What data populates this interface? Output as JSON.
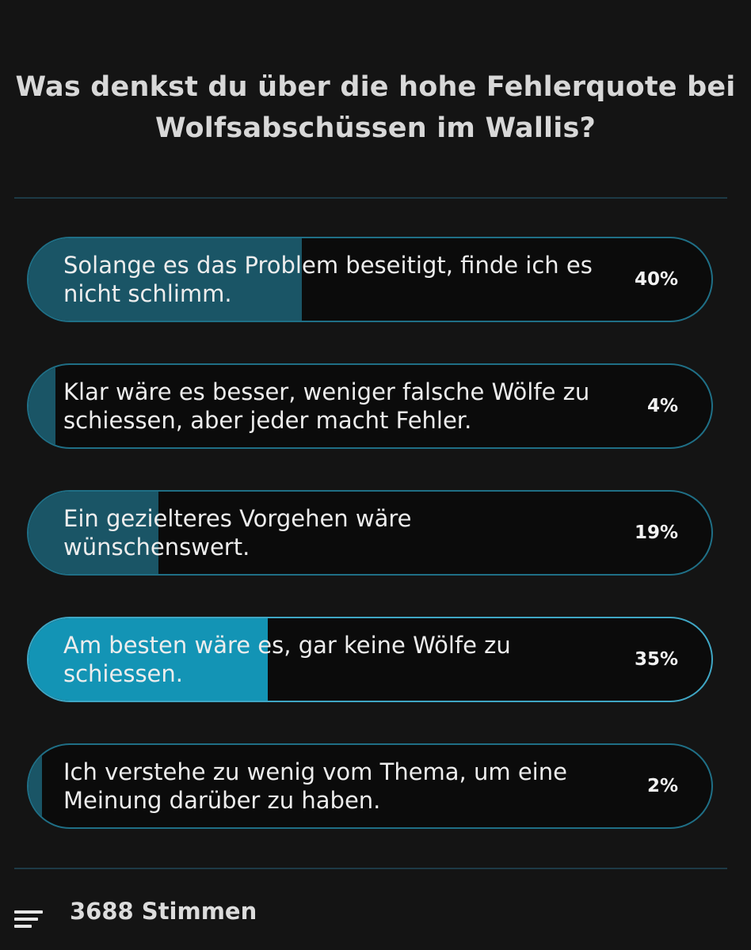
{
  "poll": {
    "question": "Was denkst du über die hohe Fehlerquote bei Wolfsabschüssen im Wallis?",
    "options": [
      {
        "label": "Solange es das Problem beseitigt, finde ich es nicht schlimm.",
        "percent_label": "40%",
        "percent": 40,
        "selected": false
      },
      {
        "label": "Klar wäre es besser, weniger falsche Wölfe zu schiessen, aber jeder macht Fehler.",
        "percent_label": "4%",
        "percent": 4,
        "selected": false
      },
      {
        "label": "Ein gezielteres Vorgehen wäre wünschenswert.",
        "percent_label": "19%",
        "percent": 19,
        "selected": false
      },
      {
        "label": "Am besten wäre es, gar keine Wölfe zu schiessen.",
        "percent_label": "35%",
        "percent": 35,
        "selected": true
      },
      {
        "label": "Ich verstehe zu wenig vom Thema, um eine Meinung darüber zu haben.",
        "percent_label": "2%",
        "percent": 2,
        "selected": false
      }
    ],
    "footer": {
      "icon": "results-list-icon",
      "votes_label": "3688 Stimmen"
    }
  },
  "colors": {
    "background": "#141414",
    "bar_fill": "#1a5566",
    "bar_fill_selected": "#1394b5",
    "border": "#1f6f86"
  }
}
